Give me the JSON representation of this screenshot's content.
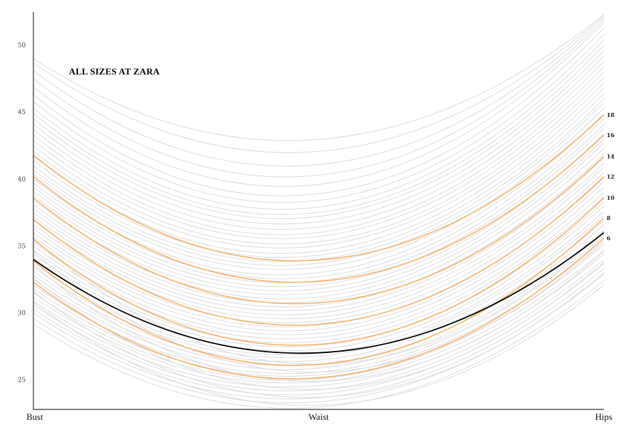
{
  "chart_data": {
    "type": "line",
    "title": "ALL SIZES AT ZARA",
    "categories": [
      "Bust",
      "Waist",
      "Hips"
    ],
    "y_ticks": [
      25,
      30,
      35,
      40,
      45,
      50
    ],
    "ylim": [
      22.8,
      52.5
    ],
    "grid": false,
    "colors": {
      "background_curve": "#dcdcdc",
      "zara_size": "#f5b46a",
      "reference": "#000000"
    },
    "highlight_series": [
      {
        "name": "6",
        "values": [
          32.3,
          25.1,
          35.6
        ]
      },
      {
        "name": "8",
        "values": [
          33.9,
          26.1,
          37.1
        ]
      },
      {
        "name": "10",
        "values": [
          35.5,
          27.6,
          38.6
        ]
      },
      {
        "name": "12",
        "values": [
          37.0,
          29.1,
          40.2
        ]
      },
      {
        "name": "14",
        "values": [
          38.6,
          30.7,
          41.7
        ]
      },
      {
        "name": "16",
        "values": [
          40.2,
          32.3,
          43.3
        ]
      },
      {
        "name": "18",
        "values": [
          41.8,
          33.9,
          44.8
        ]
      }
    ],
    "reference_series": {
      "values": [
        34.0,
        27.0,
        36.0
      ]
    },
    "background_series": [
      [
        29.2,
        22.9,
        32.4
      ],
      [
        29.6,
        23.3,
        32.9
      ],
      [
        30.0,
        23.6,
        33.3
      ],
      [
        30.3,
        23.9,
        33.7
      ],
      [
        30.6,
        24.2,
        34.0
      ],
      [
        30.9,
        24.5,
        34.4
      ],
      [
        31.2,
        24.8,
        34.7
      ],
      [
        31.5,
        25.0,
        35.1
      ],
      [
        31.8,
        25.3,
        35.4
      ],
      [
        32.1,
        25.5,
        35.8
      ],
      [
        32.5,
        25.8,
        36.2
      ],
      [
        32.8,
        26.1,
        36.6
      ],
      [
        33.1,
        26.4,
        36.9
      ],
      [
        33.4,
        26.7,
        37.3
      ],
      [
        33.7,
        26.9,
        37.6
      ],
      [
        34.1,
        27.2,
        38.0
      ],
      [
        34.4,
        27.5,
        38.3
      ],
      [
        34.7,
        27.8,
        38.7
      ],
      [
        35.0,
        28.1,
        39.0
      ],
      [
        35.3,
        28.4,
        39.4
      ],
      [
        35.7,
        28.7,
        39.8
      ],
      [
        36.0,
        29.0,
        40.1
      ],
      [
        36.3,
        29.3,
        40.5
      ],
      [
        36.6,
        29.6,
        40.9
      ],
      [
        36.9,
        29.9,
        41.2
      ],
      [
        37.2,
        30.2,
        41.6
      ],
      [
        37.5,
        30.5,
        41.9
      ],
      [
        37.8,
        30.8,
        42.3
      ],
      [
        38.1,
        31.1,
        42.7
      ],
      [
        38.4,
        31.4,
        43.0
      ],
      [
        38.8,
        31.7,
        43.4
      ],
      [
        39.1,
        32.0,
        43.8
      ],
      [
        39.4,
        32.3,
        44.1
      ],
      [
        39.7,
        32.6,
        44.5
      ],
      [
        40.0,
        32.9,
        44.9
      ],
      [
        40.4,
        33.3,
        45.3
      ],
      [
        40.7,
        33.6,
        45.7
      ],
      [
        41.0,
        33.9,
        46.0
      ],
      [
        41.4,
        34.2,
        46.4
      ],
      [
        41.7,
        34.5,
        46.8
      ],
      [
        42.1,
        34.9,
        47.2
      ],
      [
        42.5,
        35.2,
        47.6
      ],
      [
        42.9,
        35.6,
        48.0
      ],
      [
        43.3,
        35.9,
        48.4
      ],
      [
        43.7,
        36.3,
        48.8
      ],
      [
        44.1,
        36.7,
        49.2
      ],
      [
        44.5,
        37.1,
        49.6
      ],
      [
        44.9,
        37.4,
        50.0
      ],
      [
        45.3,
        37.8,
        50.4
      ],
      [
        45.8,
        38.3,
        50.8
      ],
      [
        46.3,
        38.8,
        51.3
      ],
      [
        46.9,
        39.5,
        51.7
      ],
      [
        47.5,
        40.2,
        51.9
      ],
      [
        48.1,
        41.0,
        52.1
      ],
      [
        48.7,
        42.0,
        52.2
      ],
      [
        49.0,
        42.9,
        52.3
      ],
      [
        30.8,
        23.1,
        32.1
      ],
      [
        31.6,
        23.7,
        33.0
      ],
      [
        32.6,
        24.3,
        33.8
      ],
      [
        33.6,
        24.9,
        34.6
      ],
      [
        34.6,
        25.6,
        35.3
      ],
      [
        35.6,
        26.2,
        36.1
      ]
    ]
  }
}
